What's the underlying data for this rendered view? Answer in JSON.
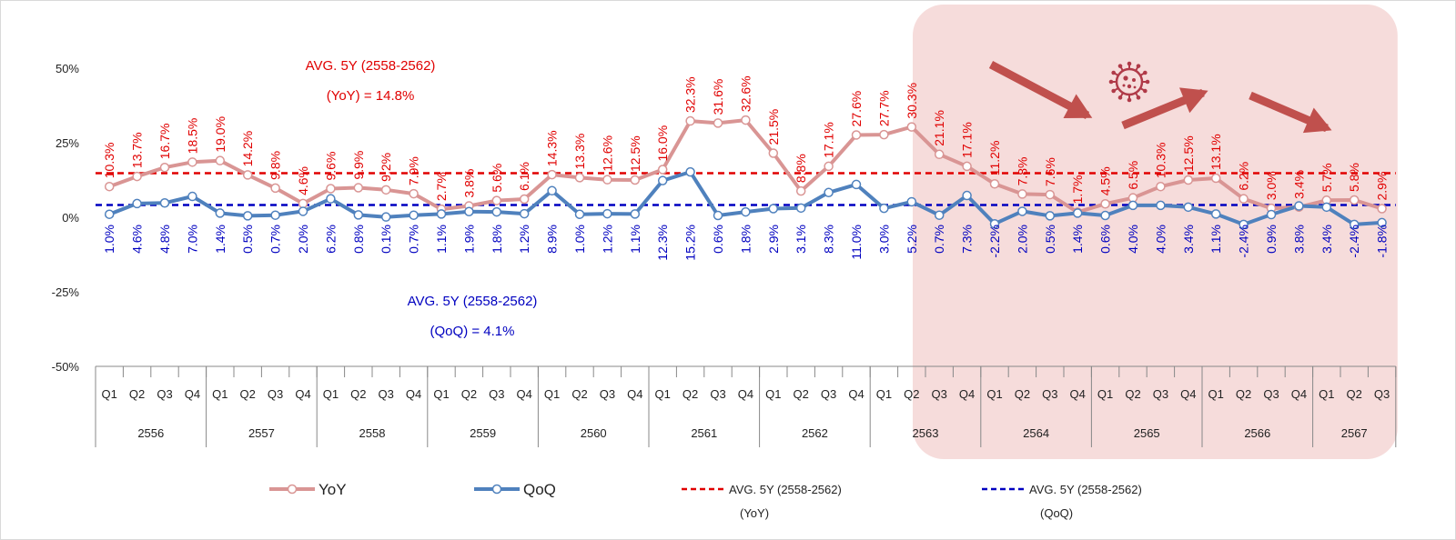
{
  "chart_data": {
    "type": "line",
    "title": "",
    "ylabel": "",
    "xlabel": "",
    "ylim": [
      -50,
      50
    ],
    "yticks": [
      {
        "value": 50,
        "label": "50%"
      },
      {
        "value": 25,
        "label": "25%"
      },
      {
        "value": 0,
        "label": "0%"
      },
      {
        "value": -25,
        "label": "-25%"
      },
      {
        "value": -50,
        "label": "-50%"
      }
    ],
    "quarters": [
      "Q1",
      "Q2",
      "Q3",
      "Q4",
      "Q1",
      "Q2",
      "Q3",
      "Q4",
      "Q1",
      "Q2",
      "Q3",
      "Q4",
      "Q1",
      "Q2",
      "Q3",
      "Q4",
      "Q1",
      "Q2",
      "Q3",
      "Q4",
      "Q1",
      "Q2",
      "Q3",
      "Q4",
      "Q1",
      "Q2",
      "Q3",
      "Q4",
      "Q1",
      "Q2",
      "Q3",
      "Q4",
      "Q1",
      "Q2",
      "Q3",
      "Q4",
      "Q1",
      "Q2",
      "Q3",
      "Q4",
      "Q1",
      "Q2",
      "Q3",
      "Q4",
      "Q1",
      "Q2",
      "Q3"
    ],
    "years": [
      {
        "label": "2556",
        "count": 4
      },
      {
        "label": "2557",
        "count": 4
      },
      {
        "label": "2558",
        "count": 4
      },
      {
        "label": "2559",
        "count": 4
      },
      {
        "label": "2560",
        "count": 4
      },
      {
        "label": "2561",
        "count": 4
      },
      {
        "label": "2562",
        "count": 4
      },
      {
        "label": "2563",
        "count": 4
      },
      {
        "label": "2564",
        "count": 4
      },
      {
        "label": "2565",
        "count": 4
      },
      {
        "label": "2566",
        "count": 4
      },
      {
        "label": "2567",
        "count": 3
      }
    ],
    "series": [
      {
        "name": "YoY",
        "color": "#d99594",
        "label_color": "#e00000",
        "values": [
          10.3,
          13.7,
          16.7,
          18.5,
          19.0,
          14.2,
          9.8,
          4.6,
          9.6,
          9.9,
          9.2,
          7.9,
          2.7,
          3.8,
          5.6,
          6.1,
          14.3,
          13.3,
          12.6,
          12.5,
          16.0,
          32.3,
          31.6,
          32.6,
          21.5,
          8.8,
          17.1,
          27.6,
          27.7,
          30.3,
          21.1,
          17.1,
          11.2,
          7.8,
          7.6,
          1.7,
          4.5,
          6.5,
          10.3,
          12.5,
          13.1,
          6.2,
          3.0,
          3.4,
          5.7,
          5.8,
          2.9
        ],
        "labels": [
          "10.3%",
          "13.7%",
          "16.7%",
          "18.5%",
          "19.0%",
          "14.2%",
          "9.8%",
          "4.6%",
          "9.6%",
          "9.9%",
          "9.2%",
          "7.9%",
          "2.7%",
          "3.8%",
          "5.6%",
          "6.1%",
          "14.3%",
          "13.3%",
          "12.6%",
          "12.5%",
          "16.0%",
          "32.3%",
          "31.6%",
          "32.6%",
          "21.5%",
          "8.8%",
          "17.1%",
          "27.6%",
          "27.7%",
          "30.3%",
          "21.1%",
          "17.1%",
          "11.2%",
          "7.8%",
          "7.6%",
          "1.7%",
          "4.5%",
          "6.5%",
          "10.3%",
          "12.5%",
          "13.1%",
          "6.2%",
          "3.0%",
          "3.4%",
          "5.7%",
          "5.8%",
          "2.9%"
        ]
      },
      {
        "name": "QoQ",
        "color": "#4f81bd",
        "label_color": "#0000c0",
        "values": [
          1.0,
          4.6,
          4.8,
          7.0,
          1.4,
          0.5,
          0.7,
          2.0,
          6.2,
          0.8,
          0.1,
          0.7,
          1.1,
          1.9,
          1.8,
          1.2,
          8.9,
          1.0,
          1.2,
          1.1,
          12.3,
          15.2,
          0.6,
          1.8,
          2.9,
          3.1,
          8.3,
          11.0,
          3.0,
          5.2,
          0.7,
          7.3,
          -2.2,
          2.0,
          0.5,
          1.4,
          0.6,
          4.0,
          4.0,
          3.4,
          1.1,
          -2.4,
          0.9,
          3.8,
          3.4,
          -2.4,
          -1.8
        ],
        "labels": [
          "1.0%",
          "4.6%",
          "4.8%",
          "7.0%",
          "1.4%",
          "0.5%",
          "0.7%",
          "2.0%",
          "6.2%",
          "0.8%",
          "0.1%",
          "0.7%",
          "1.1%",
          "1.9%",
          "1.8%",
          "1.2%",
          "8.9%",
          "1.0%",
          "1.2%",
          "1.1%",
          "12.3%",
          "15.2%",
          "0.6%",
          "1.8%",
          "2.9%",
          "3.1%",
          "8.3%",
          "11.0%",
          "3.0%",
          "5.2%",
          "0.7%",
          "7.3%",
          "-2.2%",
          "2.0%",
          "0.5%",
          "1.4%",
          "0.6%",
          "4.0%",
          "4.0%",
          "3.4%",
          "1.1%",
          "-2.4%",
          "0.9%",
          "3.8%",
          "3.4%",
          "-2.4%",
          "-1.8%"
        ]
      }
    ],
    "averages": [
      {
        "name": "AVG. 5Y (2558-2562) (YoY)",
        "value": 14.8,
        "color": "#e00000",
        "line1": "AVG. 5Y (2558-2562)",
        "line2": "(YoY) = 14.8%"
      },
      {
        "name": "AVG. 5Y (2558-2562) (QoQ)",
        "value": 4.1,
        "color": "#0000c0",
        "line1": "AVG. 5Y (2558-2562)",
        "line2": "(QoQ) = 4.1%"
      }
    ],
    "highlight": {
      "from_index": 30,
      "to_index": 46,
      "color": "#f6dcdb"
    },
    "legend": [
      {
        "label": "YoY",
        "style": "marker-line",
        "color": "#d99594"
      },
      {
        "label": "QoQ",
        "style": "marker-line",
        "color": "#4f81bd"
      },
      {
        "label": "AVG. 5Y (2558-2562)",
        "sublabel": "(YoY)",
        "style": "dashed",
        "color": "#e00000"
      },
      {
        "label": "AVG. 5Y (2558-2562)",
        "sublabel": "(QoQ)",
        "style": "dashed",
        "color": "#0000c0"
      }
    ],
    "legend_position": "bottom",
    "grid": false
  }
}
